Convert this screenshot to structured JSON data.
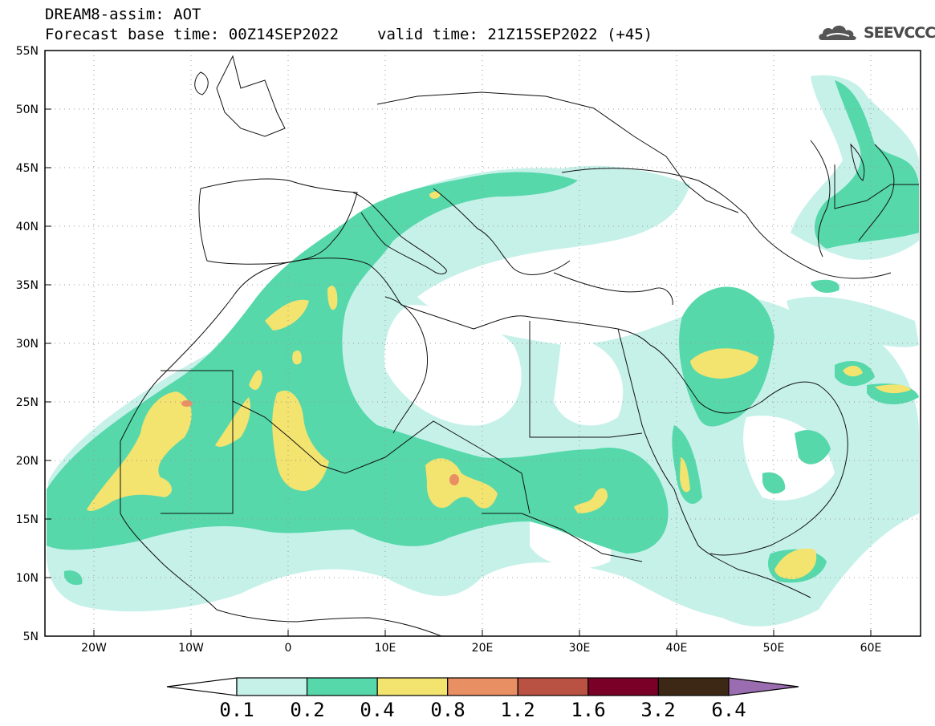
{
  "header": {
    "title": "DREAM8-assim: AOT",
    "base_time": "Forecast base time: 00Z14SEP2022",
    "valid_time": "valid time: 21Z15SEP2022 (+45)"
  },
  "logo": {
    "text": "SEEVCCC"
  },
  "axes": {
    "lat_labels": [
      "55N",
      "50N",
      "45N",
      "40N",
      "35N",
      "30N",
      "25N",
      "20N",
      "15N",
      "10N",
      "5N"
    ],
    "lon_labels": [
      "20W",
      "10W",
      "0",
      "10E",
      "20E",
      "30E",
      "40E",
      "50E",
      "60E"
    ],
    "lat_range": [
      5,
      55
    ],
    "lon_range": [
      -25,
      65
    ],
    "grid": "dotted"
  },
  "colorbar": {
    "labels": [
      "0.1",
      "0.2",
      "0.4",
      "0.8",
      "1.2",
      "1.6",
      "3.2",
      "6.4"
    ],
    "colors": [
      "#c6f1e9",
      "#56d8ab",
      "#f3e36f",
      "#e98f64",
      "#b95242",
      "#7a0028",
      "#3d2715"
    ],
    "over_color": "#9a6cb0"
  },
  "colors": {
    "level1": "#c6f1e9",
    "level2": "#56d8ab",
    "level3": "#f3e36f",
    "level4": "#e98f64"
  }
}
